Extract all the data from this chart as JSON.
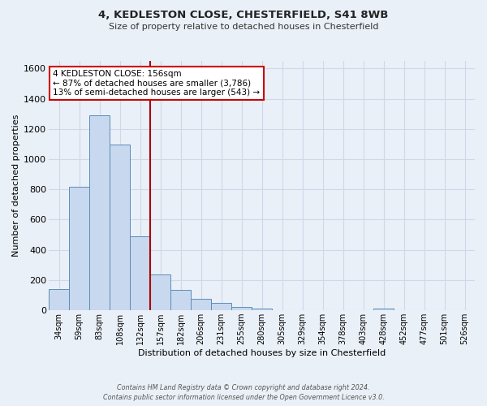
{
  "title_line1": "4, KEDLESTON CLOSE, CHESTERFIELD, S41 8WB",
  "title_line2": "Size of property relative to detached houses in Chesterfield",
  "xlabel": "Distribution of detached houses by size in Chesterfield",
  "ylabel": "Number of detached properties",
  "bar_labels": [
    "34sqm",
    "59sqm",
    "83sqm",
    "108sqm",
    "132sqm",
    "157sqm",
    "182sqm",
    "206sqm",
    "231sqm",
    "255sqm",
    "280sqm",
    "305sqm",
    "329sqm",
    "354sqm",
    "378sqm",
    "403sqm",
    "428sqm",
    "452sqm",
    "477sqm",
    "501sqm",
    "526sqm"
  ],
  "bar_values": [
    140,
    820,
    1290,
    1095,
    490,
    235,
    133,
    75,
    48,
    22,
    10,
    2,
    0,
    0,
    0,
    0,
    10,
    0,
    0,
    0,
    0
  ],
  "bar_color": "#c8d8ee",
  "bar_edge_color": "#5b8db8",
  "ylim": [
    0,
    1650
  ],
  "yticks": [
    0,
    200,
    400,
    600,
    800,
    1000,
    1200,
    1400,
    1600
  ],
  "grid_color": "#d0d8e8",
  "bg_color": "#eaf0f8",
  "property_line_color": "#aa0000",
  "annotation_title": "4 KEDLESTON CLOSE: 156sqm",
  "annotation_line1": "← 87% of detached houses are smaller (3,786)",
  "annotation_line2": "13% of semi-detached houses are larger (543) →",
  "annotation_box_color": "#ffffff",
  "annotation_border_color": "#cc0000",
  "footer_line1": "Contains HM Land Registry data © Crown copyright and database right 2024.",
  "footer_line2": "Contains public sector information licensed under the Open Government Licence v3.0."
}
